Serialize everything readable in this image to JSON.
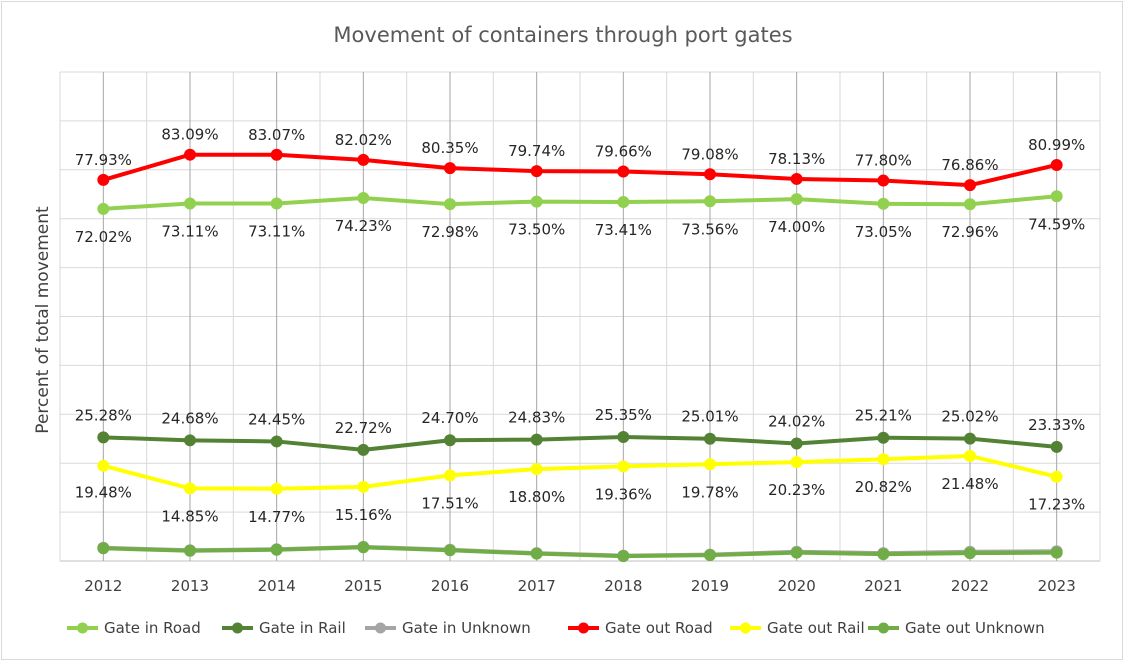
{
  "chart_data": {
    "type": "line",
    "title": "Movement of containers through port gates",
    "xlabel": "",
    "ylabel": "Percent of total movement",
    "categories": [
      "2012",
      "2013",
      "2014",
      "2015",
      "2016",
      "2017",
      "2018",
      "2019",
      "2020",
      "2021",
      "2022",
      "2023"
    ],
    "ylim": [
      0,
      100
    ],
    "grid": true,
    "legend": "bottom",
    "series": [
      {
        "name": "Gate in Road",
        "color": "#92d050",
        "values": [
          72.02,
          73.11,
          73.11,
          74.23,
          72.98,
          73.5,
          73.41,
          73.56,
          74.0,
          73.05,
          72.96,
          74.59
        ],
        "labels": [
          "72.02%",
          "73.11%",
          "73.11%",
          "74.23%",
          "72.98%",
          "73.50%",
          "73.41%",
          "73.56%",
          "74.00%",
          "73.05%",
          "72.96%",
          "74.59%"
        ]
      },
      {
        "name": "Gate in Rail",
        "color": "#548235",
        "values": [
          25.28,
          24.68,
          24.45,
          22.72,
          24.7,
          24.83,
          25.35,
          25.01,
          24.02,
          25.21,
          25.02,
          23.33
        ],
        "labels": [
          "25.28%",
          "24.68%",
          "24.45%",
          "22.72%",
          "24.70%",
          "24.83%",
          "25.35%",
          "25.01%",
          "24.02%",
          "25.21%",
          "25.02%",
          "23.33%"
        ]
      },
      {
        "name": "Gate in Unknown",
        "color": "#a5a5a5",
        "values": [
          2.7,
          2.2,
          2.4,
          2.9,
          2.3,
          1.6,
          1.1,
          1.3,
          1.9,
          1.6,
          1.9,
          2.0
        ],
        "labels": []
      },
      {
        "name": "Gate out Road",
        "color": "#ff0000",
        "values": [
          77.93,
          83.09,
          83.07,
          82.02,
          80.35,
          79.74,
          79.66,
          79.08,
          78.13,
          77.8,
          76.86,
          80.99
        ],
        "labels": [
          "77.93%",
          "83.09%",
          "83.07%",
          "82.02%",
          "80.35%",
          "79.74%",
          "79.66%",
          "79.08%",
          "78.13%",
          "77.80%",
          "76.86%",
          "80.99%"
        ]
      },
      {
        "name": "Gate out Rail",
        "color": "#ffff00",
        "values": [
          19.48,
          14.85,
          14.77,
          15.16,
          17.51,
          18.8,
          19.36,
          19.78,
          20.23,
          20.82,
          21.48,
          17.23
        ],
        "labels": [
          "19.48%",
          "14.85%",
          "14.77%",
          "15.16%",
          "17.51%",
          "18.80%",
          "19.36%",
          "19.78%",
          "20.23%",
          "20.82%",
          "21.48%",
          "17.23%"
        ]
      },
      {
        "name": "Gate out Unknown",
        "color": "#70ad47",
        "values": [
          2.6,
          2.1,
          2.3,
          2.8,
          2.2,
          1.5,
          1.0,
          1.2,
          1.7,
          1.4,
          1.6,
          1.7
        ],
        "labels": []
      }
    ]
  }
}
